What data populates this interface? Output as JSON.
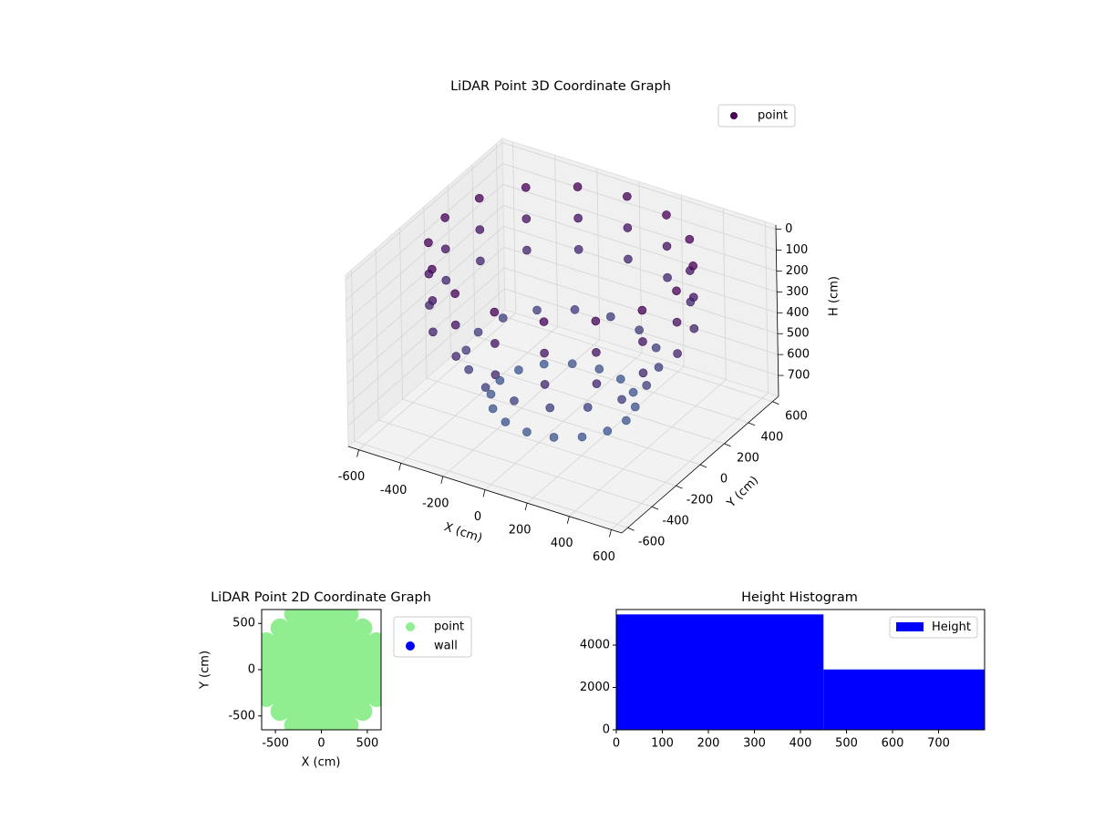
{
  "chart_data": [
    {
      "type": "scatter3d",
      "title": "LiDAR Point 3D Coordinate Graph",
      "xlabel": "X (cm)",
      "ylabel": "Y (cm)",
      "zlabel": "H (cm)",
      "xlim": [
        -650,
        650
      ],
      "ylim": [
        -650,
        650
      ],
      "zlim": [
        800,
        -20
      ],
      "xticks": [
        -600,
        -400,
        -200,
        0,
        200,
        400,
        600
      ],
      "yticks": [
        -600,
        -400,
        -200,
        0,
        200,
        400,
        600
      ],
      "zticks": [
        0,
        100,
        200,
        300,
        400,
        500,
        600,
        700
      ],
      "legend": "upper right",
      "grid": true,
      "series": [
        {
          "name": "point",
          "color": "#440154",
          "colormap": [
            "#440154",
            "#3b528b"
          ],
          "x": [
            550,
            508,
            389,
            211,
            0,
            -211,
            -389,
            -508,
            -550,
            -508,
            -389,
            -211,
            0,
            211,
            389,
            508,
            550,
            508,
            389,
            211,
            0,
            -211,
            -389,
            -508,
            -550,
            -508,
            -389,
            -211,
            0,
            211,
            389,
            508,
            550,
            508,
            389,
            211,
            0,
            -211,
            -389,
            -508,
            -550,
            -508,
            -389,
            -211,
            0,
            211,
            389,
            508,
            400,
            370,
            283,
            153,
            0,
            -153,
            -283,
            -370,
            -400,
            -370,
            -283,
            -153,
            0,
            153,
            283,
            370,
            300,
            277,
            212,
            115,
            0,
            -115,
            -212,
            -277,
            -300,
            -277,
            -212,
            -115,
            0,
            115,
            212,
            277
          ],
          "y": [
            0,
            211,
            389,
            508,
            550,
            508,
            389,
            211,
            0,
            -211,
            -389,
            -508,
            -550,
            -508,
            -389,
            -211,
            0,
            211,
            389,
            508,
            550,
            508,
            389,
            211,
            0,
            -211,
            -389,
            -508,
            -550,
            -508,
            -389,
            -211,
            0,
            211,
            389,
            508,
            550,
            508,
            389,
            211,
            0,
            -211,
            -389,
            -508,
            -550,
            -508,
            -389,
            -211,
            0,
            153,
            283,
            370,
            400,
            370,
            283,
            153,
            0,
            -153,
            -283,
            -370,
            -400,
            -370,
            -283,
            -153,
            0,
            115,
            212,
            277,
            300,
            277,
            212,
            115,
            0,
            -115,
            -212,
            -277,
            -300,
            -277,
            -212,
            -115
          ],
          "z": [
            0,
            0,
            0,
            0,
            0,
            0,
            0,
            0,
            0,
            0,
            0,
            0,
            0,
            0,
            0,
            0,
            150,
            150,
            150,
            150,
            150,
            150,
            150,
            150,
            150,
            150,
            150,
            150,
            150,
            150,
            150,
            150,
            300,
            300,
            300,
            300,
            300,
            300,
            300,
            300,
            300,
            300,
            300,
            300,
            300,
            300,
            300,
            300,
            500,
            500,
            500,
            500,
            500,
            500,
            500,
            500,
            500,
            500,
            500,
            500,
            500,
            500,
            500,
            500,
            700,
            700,
            700,
            700,
            700,
            700,
            700,
            700,
            700,
            700,
            700,
            700,
            700,
            700,
            700,
            700
          ]
        }
      ]
    },
    {
      "type": "scatter",
      "title": "LiDAR Point 2D Coordinate Graph",
      "xlabel": "X (cm)",
      "ylabel": "Y (cm)",
      "xlim": [
        -650,
        650
      ],
      "ylim": [
        -650,
        650
      ],
      "xticks": [
        -500,
        0,
        500
      ],
      "yticks": [
        -500,
        0,
        500
      ],
      "legend": "outside upper right",
      "series": [
        {
          "name": "point",
          "color": "#90ee90",
          "x": [
            -300,
            -150,
            0,
            150,
            300,
            -450,
            -300,
            -150,
            0,
            150,
            300,
            450,
            -600,
            -450,
            -300,
            -150,
            0,
            150,
            300,
            450,
            600,
            -600,
            -450,
            -300,
            -150,
            0,
            150,
            300,
            450,
            600,
            -600,
            -450,
            -300,
            -150,
            0,
            150,
            300,
            450,
            600,
            -600,
            -450,
            -300,
            -150,
            0,
            150,
            300,
            450,
            600,
            -600,
            -450,
            -300,
            -150,
            0,
            150,
            300,
            450,
            600,
            -450,
            -300,
            -150,
            0,
            150,
            300,
            450,
            -300,
            -150,
            0,
            150,
            300
          ],
          "values": [
            600,
            600,
            600,
            600,
            600,
            450,
            450,
            450,
            450,
            450,
            450,
            450,
            300,
            300,
            300,
            300,
            300,
            300,
            300,
            300,
            300,
            150,
            150,
            150,
            150,
            150,
            150,
            150,
            150,
            150,
            0,
            0,
            0,
            0,
            0,
            0,
            0,
            0,
            0,
            -150,
            -150,
            -150,
            -150,
            -150,
            -150,
            -150,
            -150,
            -150,
            -300,
            -300,
            -300,
            -300,
            -300,
            -300,
            -300,
            -300,
            -300,
            -450,
            -450,
            -450,
            -450,
            -450,
            -450,
            -450,
            -600,
            -600,
            -600,
            -600,
            -600
          ]
        },
        {
          "name": "wall",
          "color": "#0000ff",
          "x": [],
          "values": []
        }
      ]
    },
    {
      "type": "histogram",
      "title": "Height Histogram",
      "bins": [
        0,
        450,
        800
      ],
      "counts": [
        5450,
        2850
      ],
      "name": "Height",
      "color": "#0000ff",
      "xlim": [
        0,
        800
      ],
      "ylim": [
        0,
        5680
      ],
      "xticks": [
        0,
        100,
        200,
        300,
        400,
        500,
        600,
        700
      ],
      "yticks": [
        0,
        2000,
        4000
      ],
      "legend": "upper right"
    }
  ]
}
